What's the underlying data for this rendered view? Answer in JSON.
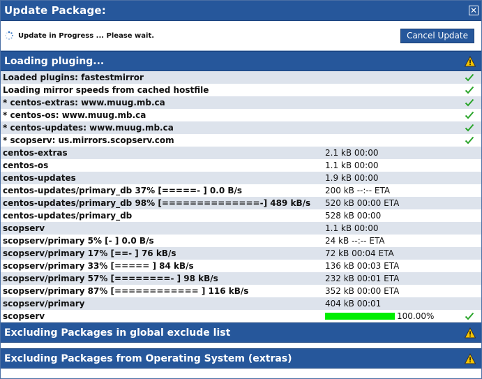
{
  "dialog": {
    "title": "Update Package:",
    "close_symbol": "✕",
    "status_text": "Update in Progress ... Please wait.",
    "cancel_label": "Cancel Update"
  },
  "sections": [
    {
      "title": "Loading pluging..."
    },
    {
      "title": "Excluding Packages in global exclude list"
    },
    {
      "title": "Excluding Packages from Operating System (extras)"
    }
  ],
  "log_rows": [
    {
      "text": "Loaded plugins: fastestmirror",
      "info": "",
      "check": true
    },
    {
      "text": "Loading mirror speeds from cached hostfile",
      "info": "",
      "check": true
    },
    {
      "text": "* centos-extras: www.muug.mb.ca",
      "info": "",
      "check": true
    },
    {
      "text": "* centos-os: www.muug.mb.ca",
      "info": "",
      "check": true
    },
    {
      "text": "* centos-updates: www.muug.mb.ca",
      "info": "",
      "check": true
    },
    {
      "text": "* scopserv: us.mirrors.scopserv.com",
      "info": "",
      "check": true
    },
    {
      "text": "centos-extras",
      "info": "2.1 kB 00:00",
      "check": false
    },
    {
      "text": "centos-os",
      "info": "1.1 kB 00:00",
      "check": false
    },
    {
      "text": "centos-updates",
      "info": "1.9 kB 00:00",
      "check": false
    },
    {
      "text": "centos-updates/primary_db 37% [=====- ] 0.0 B/s",
      "info": "200 kB --:-- ETA",
      "check": false
    },
    {
      "text": "centos-updates/primary_db 98% [==============-] 489 kB/s",
      "info": "520 kB 00:00 ETA",
      "check": false
    },
    {
      "text": "centos-updates/primary_db",
      "info": "528 kB 00:00",
      "check": false
    },
    {
      "text": "scopserv",
      "info": "1.1 kB 00:00",
      "check": false
    },
    {
      "text": "scopserv/primary 5% [- ] 0.0 B/s",
      "info": "24 kB --:-- ETA",
      "check": false
    },
    {
      "text": "scopserv/primary 17% [==- ] 76 kB/s",
      "info": "72 kB 00:04 ETA",
      "check": false
    },
    {
      "text": "scopserv/primary 33% [===== ] 84 kB/s",
      "info": "136 kB 00:03 ETA",
      "check": false
    },
    {
      "text": "scopserv/primary 57% [========- ] 98 kB/s",
      "info": "232 kB 00:01 ETA",
      "check": false
    },
    {
      "text": "scopserv/primary 87% [============ ] 116 kB/s",
      "info": "352 kB 00:00 ETA",
      "check": false
    },
    {
      "text": "scopserv/primary",
      "info": "404 kB 00:01",
      "check": false
    }
  ],
  "final_row": {
    "text": "scopserv",
    "progress_fraction": 1.0,
    "percent_text": "100.00%",
    "check": true
  },
  "colors": {
    "header_bg": "#26579b",
    "row_alt": "#dde3ec",
    "progress_fill": "#00ee00",
    "check_green": "#2aa52a"
  }
}
